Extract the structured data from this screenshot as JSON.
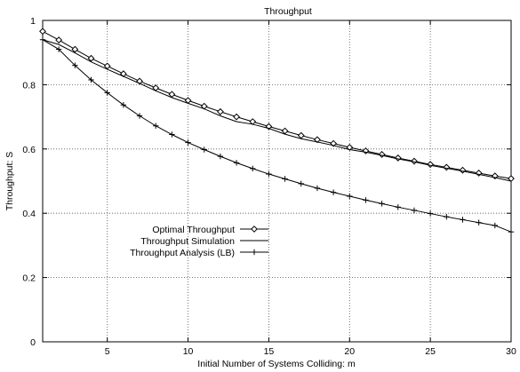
{
  "chart_data": {
    "type": "line",
    "title": "Throughput",
    "xlabel": "Initial Number of Systems Colliding: m",
    "ylabel": "Throughput: S",
    "xlim": [
      1,
      30
    ],
    "ylim": [
      0,
      1
    ],
    "xticks": [
      5,
      10,
      15,
      20,
      25,
      30
    ],
    "yticks": [
      0,
      0.2,
      0.4,
      0.6,
      0.8,
      1
    ],
    "ytick_labels": [
      "0",
      "0.2",
      "0.4",
      "0.6",
      "0.8",
      "1"
    ],
    "grid": true,
    "legend_position": "center-left",
    "series": [
      {
        "name": "Optimal Throughput",
        "marker": "diamond",
        "x": [
          1,
          2,
          3,
          4,
          5,
          6,
          7,
          8,
          9,
          10,
          11,
          12,
          13,
          14,
          15,
          16,
          17,
          18,
          19,
          20,
          21,
          22,
          23,
          24,
          25,
          26,
          27,
          28,
          29,
          30
        ],
        "values": [
          0.966,
          0.939,
          0.91,
          0.882,
          0.858,
          0.834,
          0.811,
          0.79,
          0.77,
          0.751,
          0.733,
          0.716,
          0.7,
          0.685,
          0.67,
          0.656,
          0.642,
          0.629,
          0.617,
          0.605,
          0.594,
          0.583,
          0.572,
          0.562,
          0.552,
          0.543,
          0.534,
          0.525,
          0.516,
          0.508
        ]
      },
      {
        "name": "Throughput Simulation",
        "marker": "none",
        "x": [
          1,
          2,
          3,
          4,
          5,
          6,
          7,
          8,
          9,
          10,
          11,
          12,
          13,
          14,
          15,
          16,
          17,
          18,
          19,
          20,
          21,
          22,
          23,
          24,
          25,
          26,
          27,
          28,
          29,
          30
        ],
        "values": [
          0.94,
          0.925,
          0.899,
          0.871,
          0.848,
          0.826,
          0.804,
          0.781,
          0.76,
          0.742,
          0.725,
          0.703,
          0.685,
          0.677,
          0.664,
          0.646,
          0.632,
          0.622,
          0.611,
          0.598,
          0.59,
          0.58,
          0.569,
          0.56,
          0.549,
          0.54,
          0.531,
          0.521,
          0.511,
          0.5
        ]
      },
      {
        "name": "Throughput Analysis (LB)",
        "marker": "plus",
        "x": [
          1,
          2,
          3,
          4,
          5,
          6,
          7,
          8,
          9,
          10,
          11,
          12,
          13,
          14,
          15,
          16,
          17,
          18,
          19,
          20,
          21,
          22,
          23,
          24,
          25,
          26,
          27,
          28,
          29,
          30
        ],
        "values": [
          0.94,
          0.91,
          0.86,
          0.815,
          0.775,
          0.737,
          0.703,
          0.672,
          0.645,
          0.62,
          0.598,
          0.577,
          0.557,
          0.539,
          0.522,
          0.507,
          0.492,
          0.478,
          0.465,
          0.453,
          0.441,
          0.43,
          0.419,
          0.409,
          0.399,
          0.389,
          0.38,
          0.371,
          0.362,
          0.342
        ]
      }
    ]
  }
}
